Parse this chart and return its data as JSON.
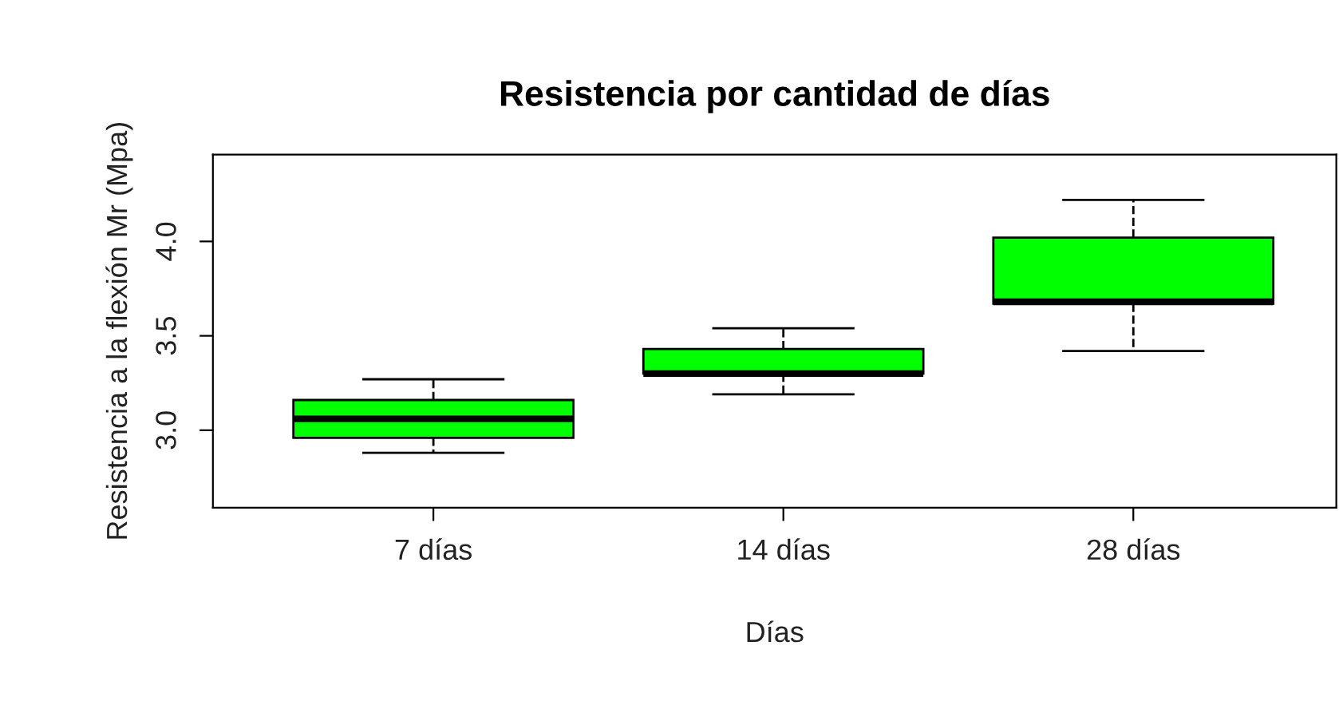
{
  "chart_data": {
    "type": "box",
    "title": "Resistencia por cantidad de días",
    "xlabel": "Días",
    "ylabel": "Resistencia a la flexión Mr (Mpa)",
    "categories": [
      "7 días",
      "14 días",
      "28 días"
    ],
    "series": [
      {
        "color": "#00ff00",
        "boxes": [
          {
            "low": 2.88,
            "q1": 2.96,
            "median": 3.06,
            "q3": 3.16,
            "high": 3.27
          },
          {
            "low": 3.19,
            "q1": 3.3,
            "median": 3.3,
            "q3": 3.43,
            "high": 3.54
          },
          {
            "low": 3.42,
            "q1": 3.67,
            "median": 3.68,
            "q3": 4.02,
            "high": 4.22
          }
        ]
      }
    ],
    "ylim": [
      2.59,
      4.46
    ],
    "yticks": [
      {
        "value": 3,
        "label": "3.0"
      },
      3.5,
      {
        "value": 4,
        "label": "4.0"
      }
    ],
    "grid": false,
    "legend": false,
    "line_style": "dashed"
  }
}
